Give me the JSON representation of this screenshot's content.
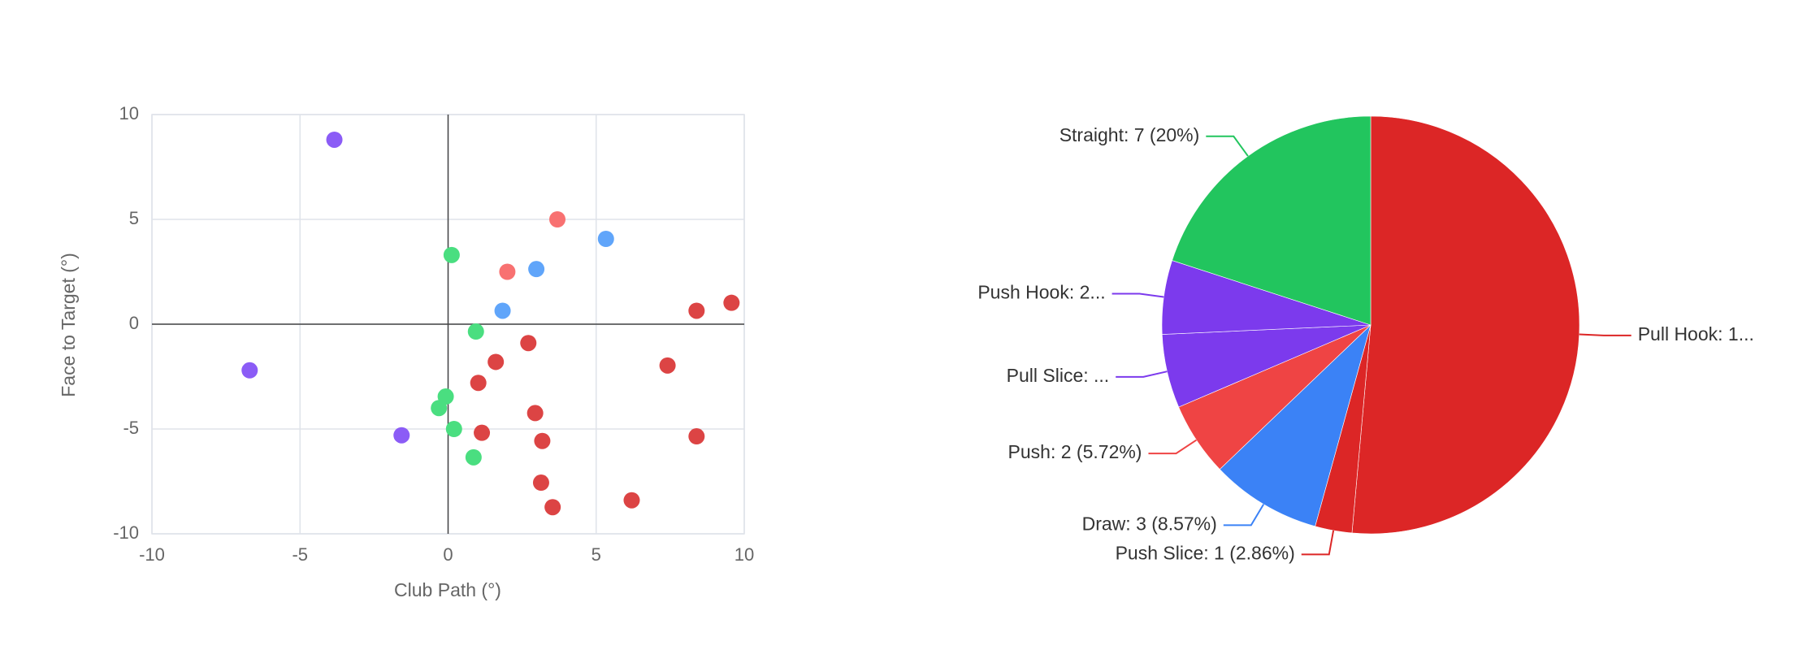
{
  "chart_data": [
    {
      "type": "scatter",
      "xlabel": "Club Path (°)",
      "ylabel": "Face to Target (°)",
      "xlim": [
        -10,
        10
      ],
      "ylim": [
        -10,
        10
      ],
      "xticks": [
        -10,
        -5,
        0,
        5,
        10
      ],
      "yticks": [
        -10,
        -5,
        0,
        5,
        10
      ],
      "grid": true,
      "series": [
        {
          "color": "#8b5cf6",
          "x": [
            -3.84,
            -6.7,
            -1.57
          ],
          "values": [
            8.8,
            -2.2,
            -5.3
          ]
        },
        {
          "color": "#4ade80",
          "x": [
            0.12,
            0.94,
            -0.08,
            -0.31,
            0.2,
            0.86
          ],
          "values": [
            3.3,
            -0.35,
            -3.45,
            -4.0,
            -5.0,
            -6.35
          ]
        },
        {
          "color": "#60a5fa",
          "x": [
            5.33,
            2.98,
            1.84
          ],
          "values": [
            4.07,
            2.63,
            0.64
          ]
        },
        {
          "color": "#f87171",
          "x": [
            3.69,
            2.0
          ],
          "values": [
            5.0,
            2.5
          ]
        },
        {
          "color": "#dc4444",
          "x": [
            8.39,
            9.57,
            2.71,
            1.61,
            1.02,
            7.41,
            2.94,
            1.14,
            3.18,
            8.39,
            3.14,
            3.53,
            6.2
          ],
          "values": [
            0.64,
            1.02,
            -0.9,
            -1.8,
            -2.8,
            -1.97,
            -4.24,
            -5.18,
            -5.57,
            -5.35,
            -7.56,
            -8.73,
            -8.4
          ]
        }
      ]
    },
    {
      "type": "pie",
      "values": [
        18,
        1,
        3,
        2,
        2,
        2,
        7
      ],
      "value_labels": [
        "Pull Hook: 1...",
        "Push Slice: 1 (2.86%)",
        "Draw: 3 (8.57%)",
        "Push: 2 (5.72%)",
        "Pull Slice: ...",
        "Push Hook: 2...",
        "Straight: 7 (20%)"
      ],
      "colors": [
        "#dc2626",
        "#dc2626",
        "#3b82f6",
        "#ef4444",
        "#7c3aed",
        "#7c3aed",
        "#22c55e"
      ]
    }
  ]
}
